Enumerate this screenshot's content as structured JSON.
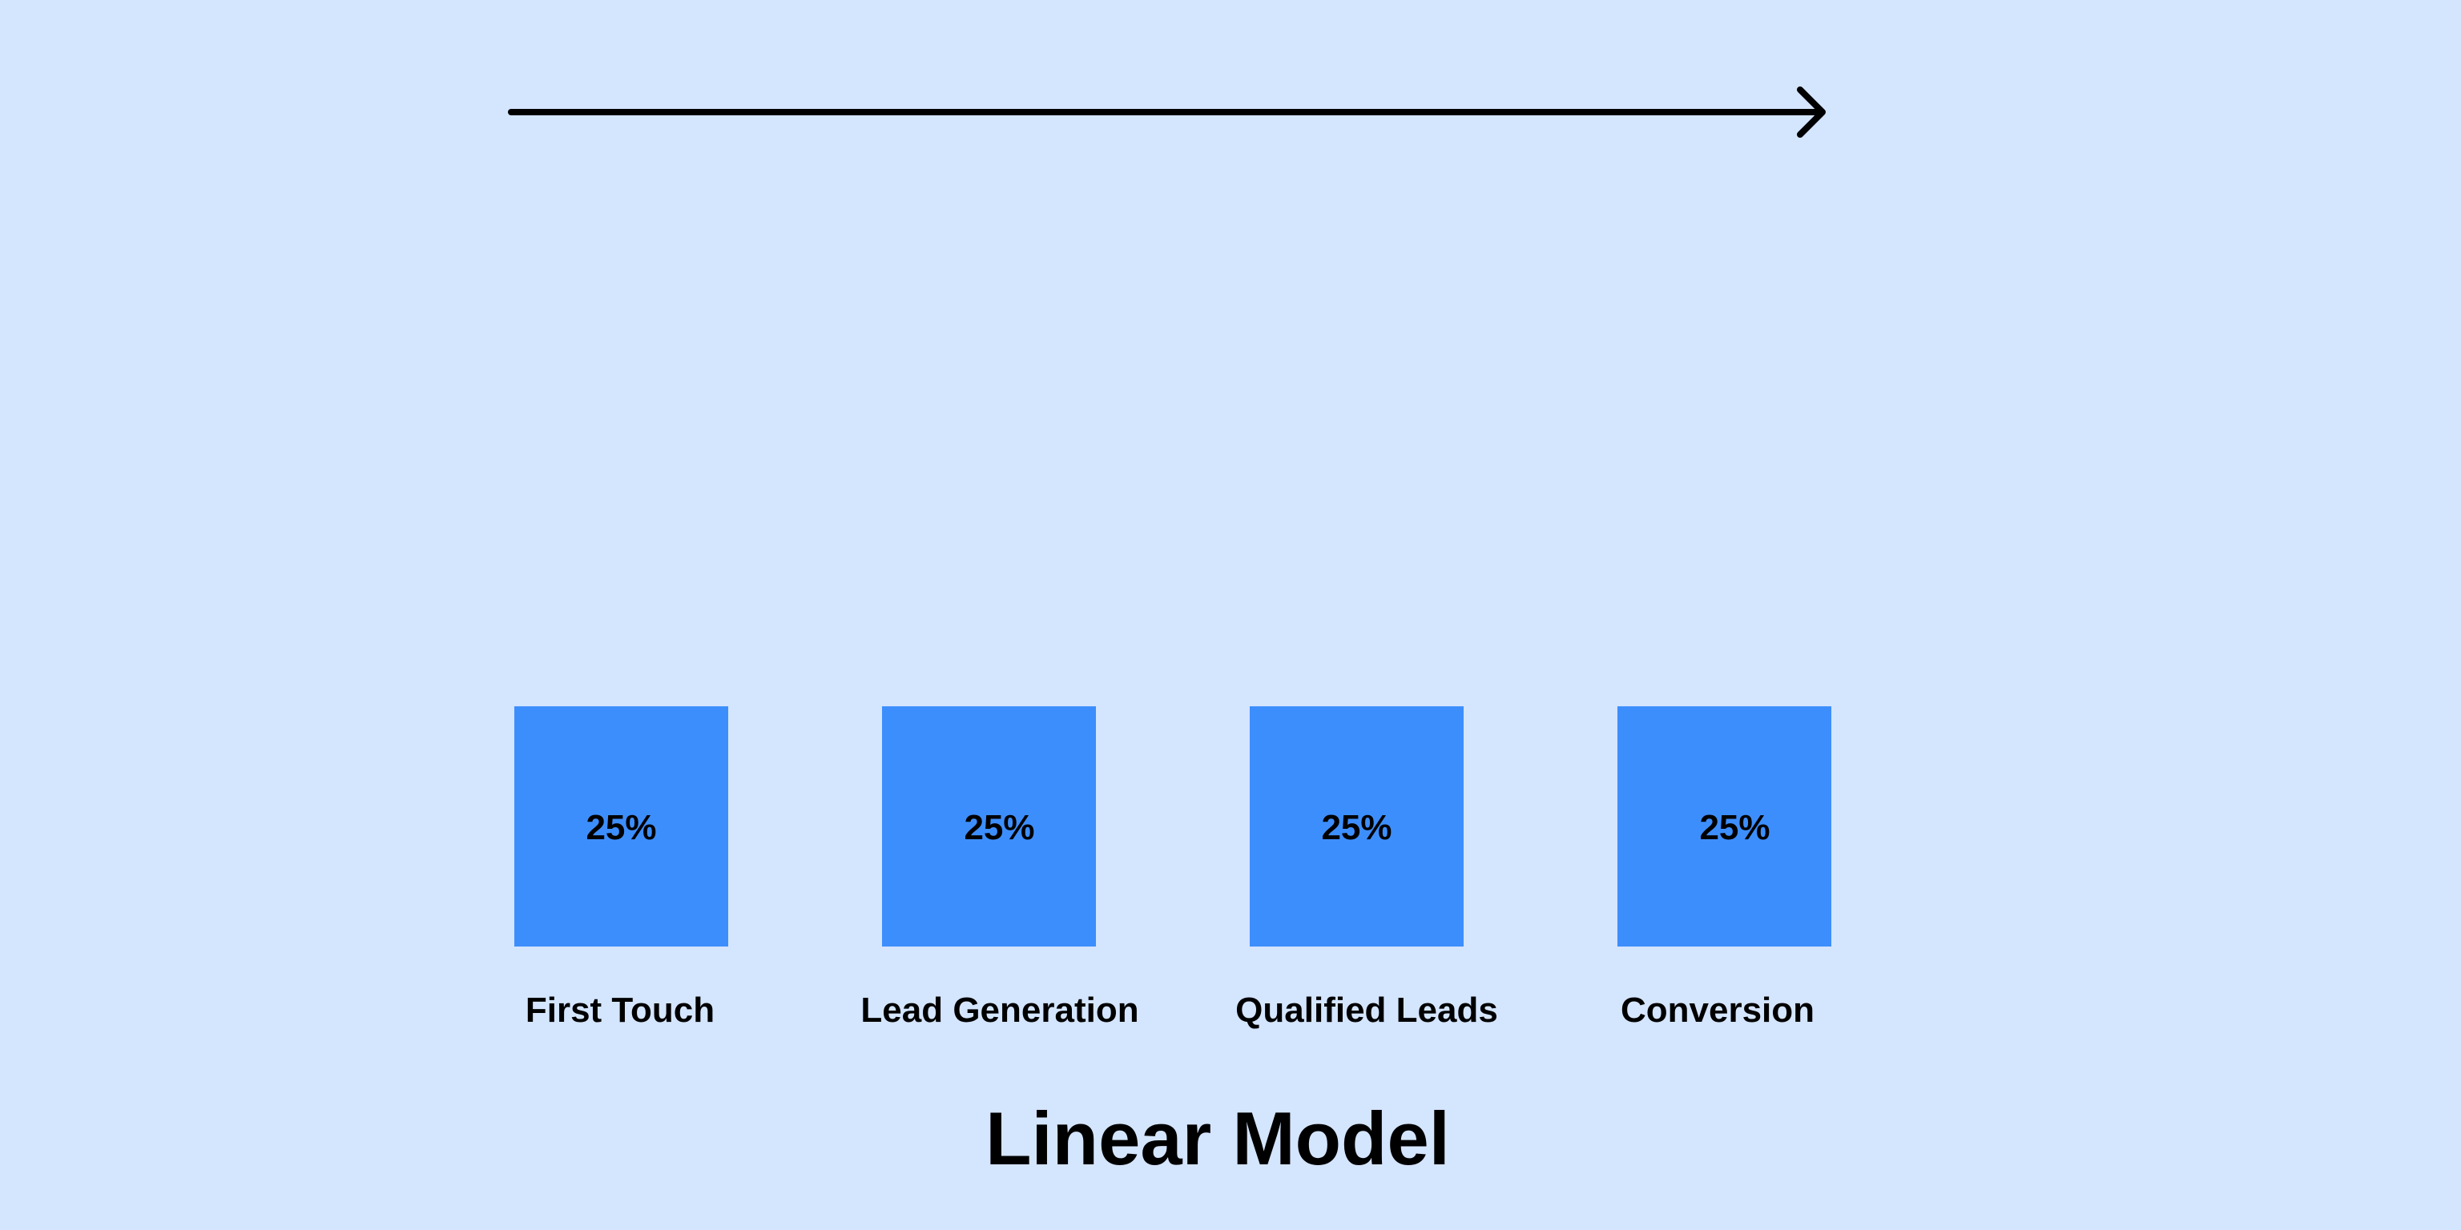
{
  "title": "Linear Model",
  "colors": {
    "background": "#d4e5fe",
    "box": "#3d8efd",
    "text": "#000000",
    "arrow": "#000000"
  },
  "arrow_icon": "right-arrow-icon",
  "stages": [
    {
      "label": "First Touch",
      "value": "25%"
    },
    {
      "label": "Lead Generation",
      "value": "25%"
    },
    {
      "label": "Qualified Leads",
      "value": "25%"
    },
    {
      "label": "Conversion",
      "value": "25%"
    }
  ]
}
